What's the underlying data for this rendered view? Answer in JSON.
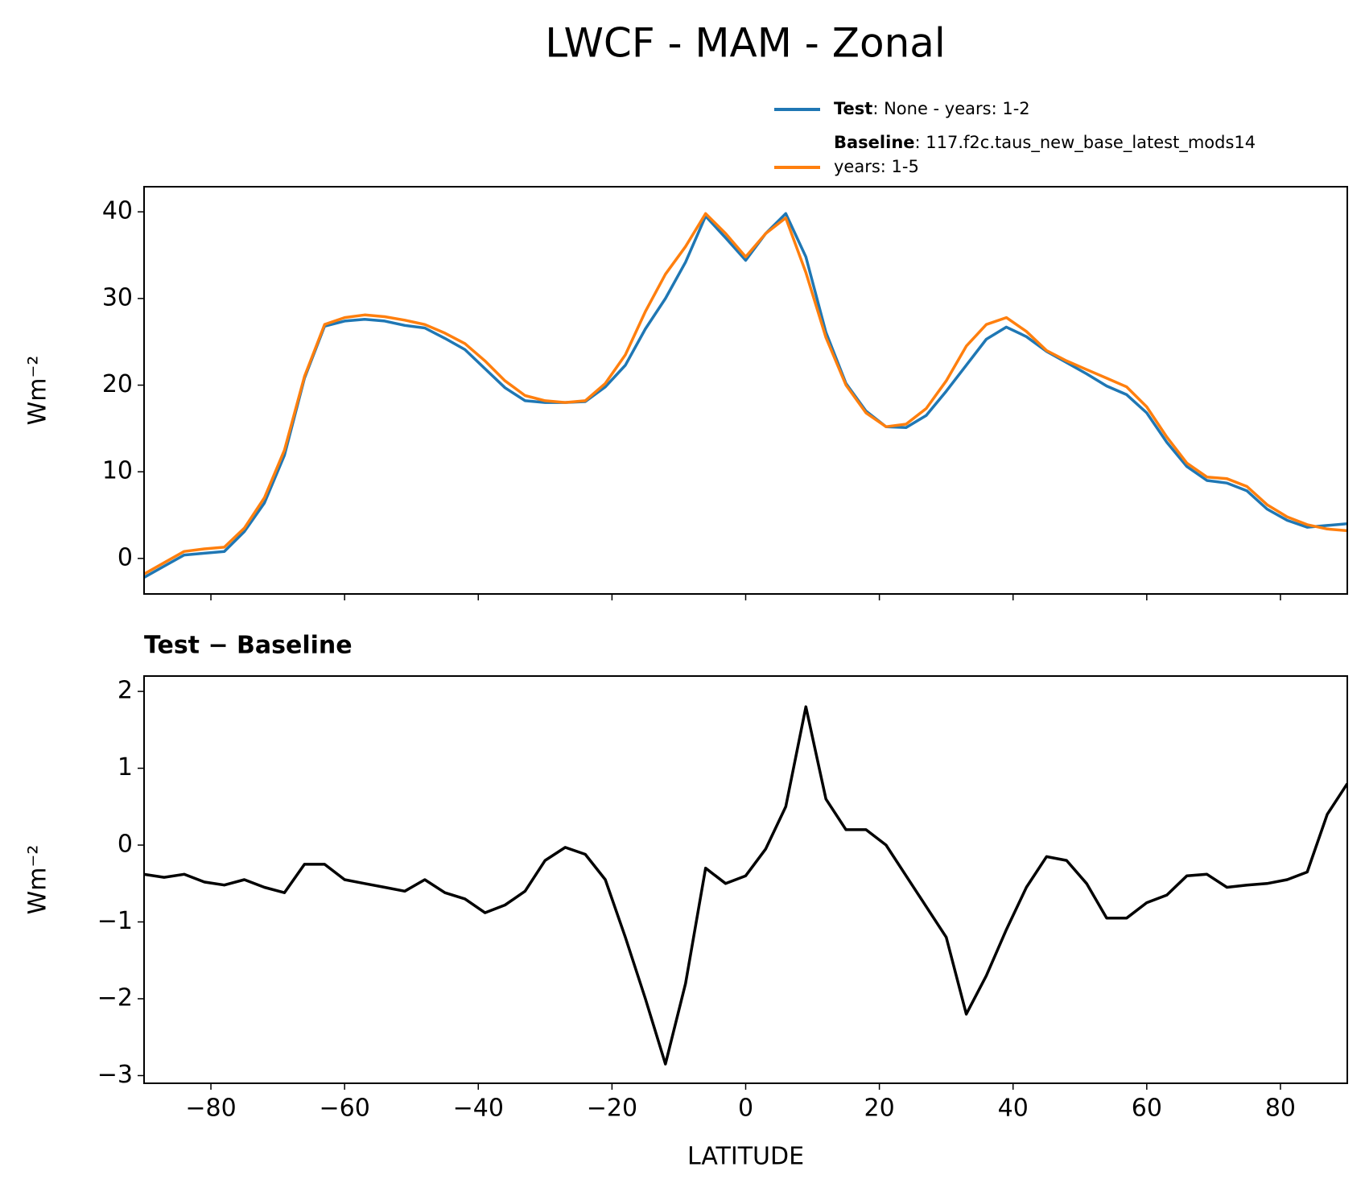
{
  "title": "LWCF - MAM - Zonal",
  "chart_data": [
    {
      "type": "line",
      "ylabel": "Wm⁻²",
      "x": [
        -90,
        -87,
        -84,
        -81,
        -78,
        -75,
        -72,
        -69,
        -66,
        -63,
        -60,
        -57,
        -54,
        -51,
        -48,
        -45,
        -42,
        -39,
        -36,
        -33,
        -30,
        -27,
        -24,
        -21,
        -18,
        -15,
        -12,
        -9,
        -6,
        -3,
        0,
        3,
        6,
        9,
        12,
        15,
        18,
        21,
        24,
        27,
        30,
        33,
        36,
        39,
        42,
        45,
        48,
        51,
        54,
        57,
        60,
        63,
        66,
        69,
        72,
        75,
        78,
        81,
        84,
        87,
        90
      ],
      "series": [
        {
          "name": "Test",
          "desc": [
            ": None - years: 1-2"
          ],
          "color": "#1f77b4",
          "values": [
            -2.2,
            -0.9,
            0.4,
            0.6,
            0.8,
            3.1,
            6.4,
            11.9,
            20.8,
            26.8,
            27.4,
            27.6,
            27.4,
            26.9,
            26.6,
            25.4,
            24.1,
            21.9,
            19.7,
            18.2,
            18.0,
            18.0,
            18.1,
            19.8,
            22.3,
            26.5,
            30.0,
            34.2,
            39.5,
            37.0,
            34.4,
            37.5,
            39.8,
            34.8,
            26.1,
            20.2,
            17.0,
            15.2,
            15.1,
            16.5,
            19.3,
            22.3,
            25.3,
            26.7,
            25.6,
            23.9,
            22.6,
            21.3,
            19.9,
            18.9,
            16.8,
            13.4,
            10.6,
            9.0,
            8.7,
            7.8,
            5.7,
            4.4,
            3.6,
            3.8,
            4.0
          ]
        },
        {
          "name": "Baseline",
          "desc": [
            ": 117.f2c.taus_new_base_latest_mods14",
            "years: 1-5"
          ],
          "color": "#ff7f0e",
          "values": [
            -1.8,
            -0.5,
            0.8,
            1.1,
            1.3,
            3.5,
            7.0,
            12.5,
            21.0,
            27.0,
            27.8,
            28.1,
            27.9,
            27.5,
            27.0,
            26.0,
            24.8,
            22.8,
            20.5,
            18.8,
            18.2,
            18.0,
            18.2,
            20.2,
            23.5,
            28.5,
            32.8,
            36.0,
            39.8,
            37.5,
            34.8,
            37.5,
            39.3,
            33.0,
            25.5,
            20.0,
            16.8,
            15.2,
            15.5,
            17.3,
            20.5,
            24.5,
            27.0,
            27.8,
            26.2,
            24.0,
            22.8,
            21.8,
            20.8,
            19.8,
            17.5,
            14.0,
            11.0,
            9.4,
            9.2,
            8.3,
            6.2,
            4.8,
            3.9,
            3.4,
            3.2
          ]
        }
      ],
      "xlim": [
        -90,
        90
      ],
      "xticks": [
        -80,
        -60,
        -40,
        -20,
        0,
        20,
        40,
        60,
        80
      ],
      "ylim": [
        -4.1,
        42.9
      ],
      "yticks": [
        0,
        10,
        20,
        30,
        40
      ]
    },
    {
      "type": "line",
      "subtitle": "Test − Baseline",
      "ylabel": "Wm⁻²",
      "xlabel": "LATITUDE",
      "x": [
        -90,
        -87,
        -84,
        -81,
        -78,
        -75,
        -72,
        -69,
        -66,
        -63,
        -60,
        -57,
        -54,
        -51,
        -48,
        -45,
        -42,
        -39,
        -36,
        -33,
        -30,
        -27,
        -24,
        -21,
        -18,
        -15,
        -12,
        -9,
        -6,
        -3,
        0,
        3,
        6,
        9,
        12,
        15,
        18,
        21,
        24,
        27,
        30,
        33,
        36,
        39,
        42,
        45,
        48,
        51,
        54,
        57,
        60,
        63,
        66,
        69,
        72,
        75,
        78,
        81,
        84,
        87,
        90
      ],
      "series": [
        {
          "color": "#000000",
          "values": [
            -0.38,
            -0.42,
            -0.38,
            -0.48,
            -0.52,
            -0.45,
            -0.55,
            -0.62,
            -0.25,
            -0.25,
            -0.45,
            -0.5,
            -0.55,
            -0.6,
            -0.45,
            -0.62,
            -0.7,
            -0.88,
            -0.78,
            -0.6,
            -0.2,
            -0.03,
            -0.12,
            -0.45,
            -1.2,
            -2.0,
            -2.85,
            -1.8,
            -0.3,
            -0.5,
            -0.4,
            -0.05,
            0.5,
            1.8,
            0.6,
            0.2,
            0.2,
            0.0,
            -0.4,
            -0.8,
            -1.2,
            -2.2,
            -1.7,
            -1.1,
            -0.55,
            -0.15,
            -0.2,
            -0.5,
            -0.95,
            -0.95,
            -0.75,
            -0.65,
            -0.4,
            -0.38,
            -0.55,
            -0.52,
            -0.5,
            -0.45,
            -0.35,
            0.4,
            0.8
          ]
        }
      ],
      "xlim": [
        -90,
        90
      ],
      "xticks": [
        {
          "value": -80,
          "label": "−80"
        },
        {
          "value": -60,
          "label": "−60"
        },
        {
          "value": -40,
          "label": "−40"
        },
        {
          "value": -20,
          "label": "−20"
        },
        0,
        20,
        40,
        60,
        80
      ],
      "ylim": [
        -3.1,
        2.2
      ],
      "yticks": [
        {
          "value": -3,
          "label": "−3"
        },
        {
          "value": -2,
          "label": "−2"
        },
        {
          "value": -1,
          "label": "−1"
        },
        0,
        1,
        2
      ]
    }
  ]
}
